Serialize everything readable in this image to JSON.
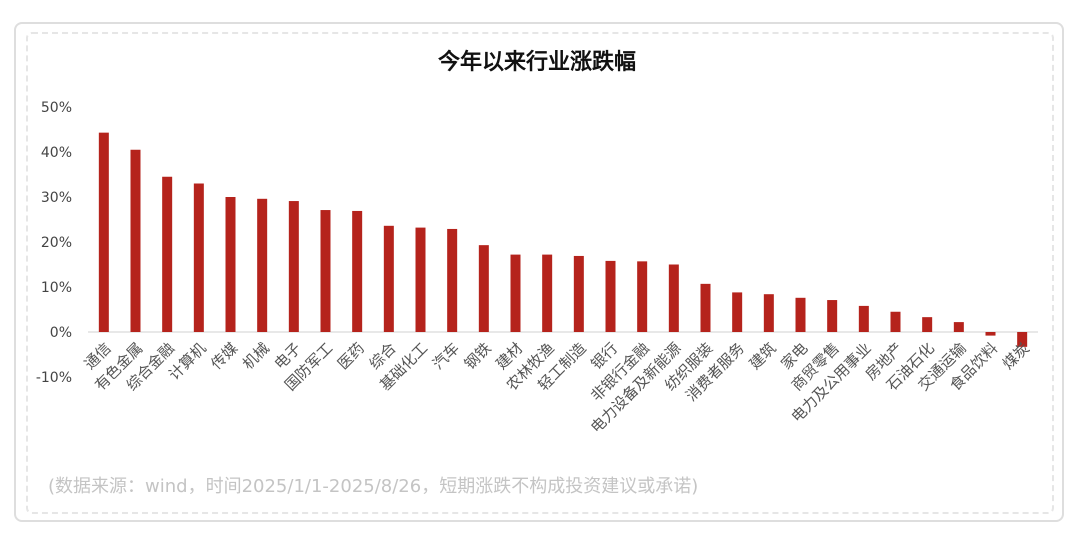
{
  "chart_data": {
    "type": "bar",
    "title": "今年以来行业涨跌幅",
    "subtitle": "",
    "xlabel": "",
    "ylabel": "",
    "ylim": [
      -0.1,
      0.5
    ],
    "yticks": [
      -0.1,
      0.0,
      0.1,
      0.2,
      0.3,
      0.4,
      0.5
    ],
    "ytick_labels": [
      "-10%",
      "0%",
      "10%",
      "20%",
      "30%",
      "40%",
      "50%"
    ],
    "categories": [
      "通信",
      "有色金属",
      "综合金融",
      "计算机",
      "传媒",
      "机械",
      "电子",
      "国防军工",
      "医药",
      "综合",
      "基础化工",
      "汽车",
      "钢铁",
      "建材",
      "农林牧渔",
      "轻工制造",
      "银行",
      "非银行金融",
      "电力设备及新能源",
      "纺织服装",
      "消费者服务",
      "建筑",
      "家电",
      "商贸零售",
      "电力及公用事业",
      "房地产",
      "石油石化",
      "交通运输",
      "食品饮料",
      "煤炭"
    ],
    "values": [
      0.443,
      0.405,
      0.345,
      0.33,
      0.3,
      0.296,
      0.291,
      0.271,
      0.269,
      0.236,
      0.232,
      0.229,
      0.193,
      0.172,
      0.172,
      0.169,
      0.158,
      0.157,
      0.15,
      0.107,
      0.088,
      0.084,
      0.076,
      0.071,
      0.058,
      0.045,
      0.033,
      0.022,
      -0.008,
      -0.033
    ],
    "bar_color": "#B5231C",
    "legend": "none",
    "grid": false
  },
  "source_note": "(数据来源：wind，时间2025/1/1-2025/8/26，短期涨跌不构成投资建议或承诺)"
}
